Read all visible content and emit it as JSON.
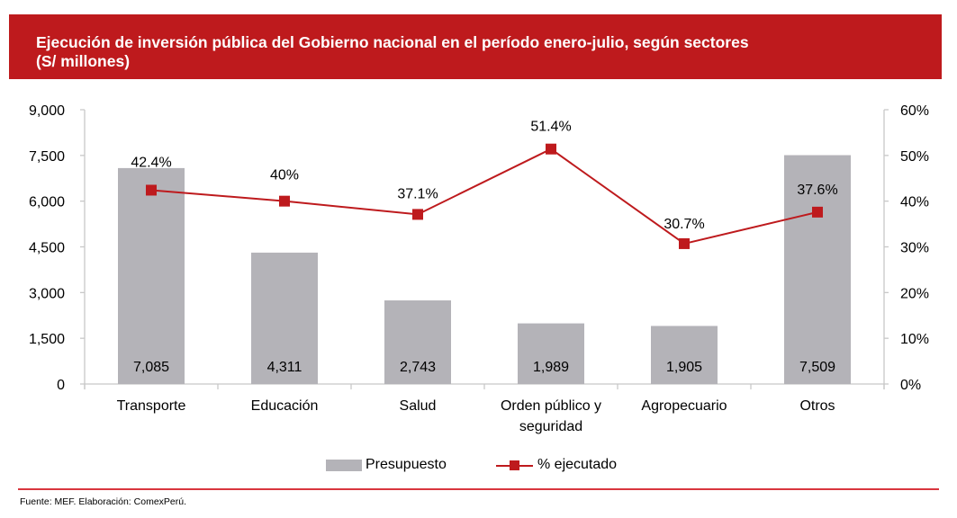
{
  "header": {
    "title": "Ejecución de inversión pública del Gobierno nacional en el período enero-julio, según sectores\n(S/ millones)"
  },
  "chart_data": {
    "type": "bar",
    "title": "Ejecución de inversión pública del Gobierno nacional en el período enero-julio, según sectores (S/ millones)",
    "categories": [
      "Transporte",
      "Educación",
      "Salud",
      "Orden público y seguridad",
      "Agropecuario",
      "Otros"
    ],
    "category_lines": [
      [
        "Transporte"
      ],
      [
        "Educación"
      ],
      [
        "Salud"
      ],
      [
        "Orden público y",
        "seguridad"
      ],
      [
        "Agropecuario"
      ],
      [
        "Otros"
      ]
    ],
    "series": [
      {
        "name": "Presupuesto",
        "type": "bar",
        "axis": "left",
        "color": "#b4b3b8",
        "values": [
          7085,
          4311,
          2743,
          1989,
          1905,
          7509
        ],
        "labels": [
          "7,085",
          "4,311",
          "2,743",
          "1,989",
          "1,905",
          "7,509"
        ]
      },
      {
        "name": "% ejecutado",
        "type": "line",
        "axis": "right",
        "color": "#be1a1d",
        "marker": "square",
        "values": [
          42.4,
          40,
          37.1,
          51.4,
          30.7,
          37.6
        ],
        "labels": [
          "42.4%",
          "40%",
          "37.1%",
          "51.4%",
          "30.7%",
          "37.6%"
        ]
      }
    ],
    "y_left": {
      "range": [
        0,
        9000
      ],
      "ticks": [
        0,
        1500,
        3000,
        4500,
        6000,
        7500,
        9000
      ],
      "tick_labels": [
        "0",
        "1,500",
        "3,000",
        "4,500",
        "6,000",
        "7,500",
        "9,000"
      ]
    },
    "y_right": {
      "range": [
        0,
        60
      ],
      "ticks": [
        0,
        10,
        20,
        30,
        40,
        50,
        60
      ],
      "tick_labels": [
        "0%",
        "10%",
        "20%",
        "30%",
        "40%",
        "50%",
        "60%"
      ]
    },
    "xlabel": "",
    "ylabel": "",
    "grid": false,
    "legend": "bottom-center"
  },
  "legend": {
    "items": [
      {
        "label": "Presupuesto"
      },
      {
        "label": "% ejecutado"
      }
    ]
  },
  "footer": {
    "source": "Fuente: MEF. Elaboración: ComexPerú."
  }
}
